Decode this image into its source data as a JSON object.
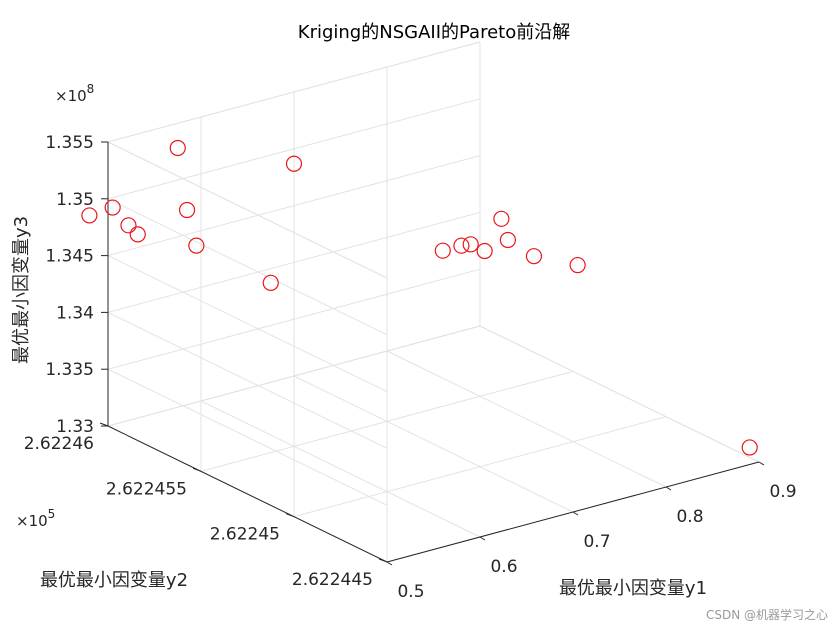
{
  "chart_data": {
    "type": "scatter",
    "title": "Kriging的NSGAII的Pareto前沿解",
    "xlabel": "最优最小因变量y1",
    "ylabel": "最优最小因变量y2",
    "zlabel": "最优最小因变量y3",
    "xlim": [
      0.5,
      0.9
    ],
    "ylim": [
      262244.5,
      262246.0
    ],
    "zlim": [
      133000000,
      135500000
    ],
    "x_ticks": [
      0.5,
      0.6,
      0.7,
      0.8,
      0.9
    ],
    "x_tick_labels": [
      "0.5",
      "0.6",
      "0.7",
      "0.8",
      "0.9"
    ],
    "y_ticks": [
      262244.5,
      262245.0,
      262245.5,
      262246.0
    ],
    "y_tick_labels": [
      "2.622445",
      "2.62245",
      "2.622455",
      "2.62246"
    ],
    "y_exponent": "×10",
    "y_exponent_power": "5",
    "z_ticks": [
      133000000,
      133500000,
      134000000,
      134500000,
      135000000,
      135500000
    ],
    "z_tick_labels": [
      "1.33",
      "1.335",
      "1.34",
      "1.345",
      "1.35",
      "1.355"
    ],
    "z_exponent": "×10",
    "z_exponent_power": "8",
    "grid": true,
    "marker": "circle",
    "marker_color": "#e8161b",
    "points": [
      {
        "x": 0.52,
        "y": 262246.2,
        "z": 134650000
      },
      {
        "x": 0.515,
        "y": 262246.05,
        "z": 134850000
      },
      {
        "x": 0.512,
        "y": 262245.95,
        "z": 134780000
      },
      {
        "x": 0.512,
        "y": 262245.9,
        "z": 134740000
      },
      {
        "x": 0.585,
        "y": 262246.05,
        "z": 135220000
      },
      {
        "x": 0.555,
        "y": 262245.85,
        "z": 134900000
      },
      {
        "x": 0.535,
        "y": 262245.7,
        "z": 134750000
      },
      {
        "x": 0.545,
        "y": 262245.35,
        "z": 134680000
      },
      {
        "x": 0.69,
        "y": 262245.95,
        "z": 134930000
      },
      {
        "x": 0.76,
        "y": 262245.5,
        "z": 134370000
      },
      {
        "x": 0.78,
        "y": 262245.5,
        "z": 134370000
      },
      {
        "x": 0.79,
        "y": 262245.5,
        "z": 134360000
      },
      {
        "x": 0.795,
        "y": 262245.45,
        "z": 134330000
      },
      {
        "x": 0.83,
        "y": 262245.5,
        "z": 134310000
      },
      {
        "x": 0.833,
        "y": 262245.55,
        "z": 134450000
      },
      {
        "x": 0.838,
        "y": 262245.4,
        "z": 134230000
      },
      {
        "x": 0.875,
        "y": 262245.35,
        "z": 134110000
      },
      {
        "x": 0.89,
        "y": 262244.5,
        "z": 133150000
      }
    ]
  },
  "watermark": "CSDN @机器学习之心"
}
